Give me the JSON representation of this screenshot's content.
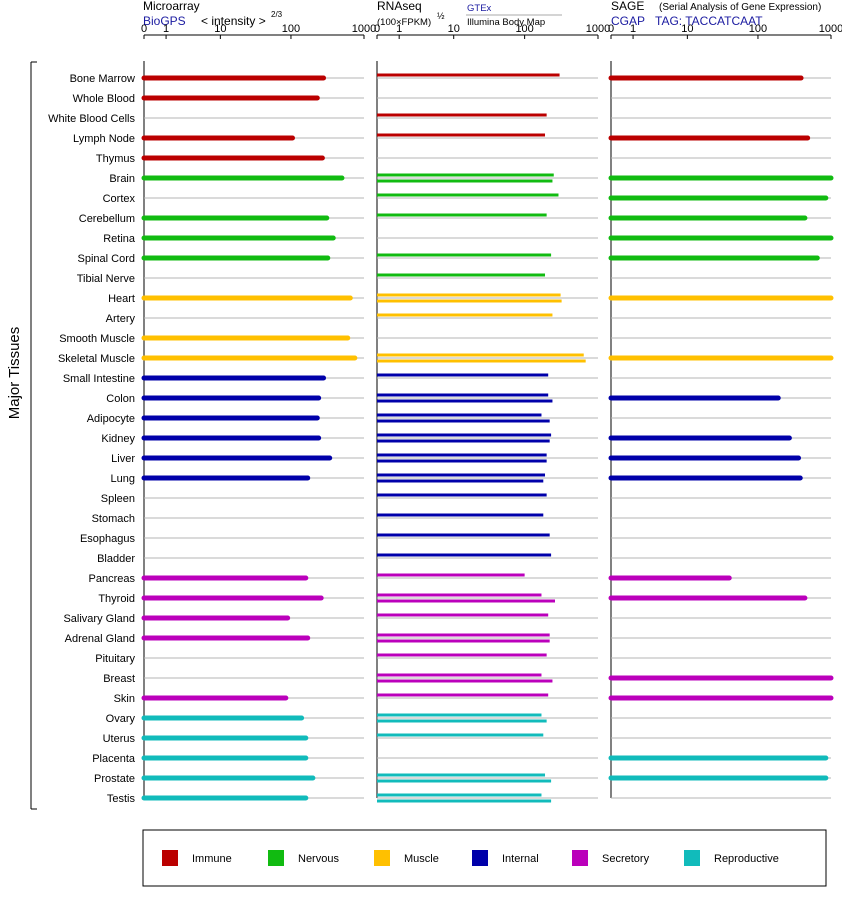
{
  "headers": {
    "microarray": {
      "title": "Microarray",
      "source": "BioGPS",
      "unit": "< intensity >",
      "unit_exp": "2/3"
    },
    "rnaseq": {
      "title": "RNAseq",
      "unit": "(100×FPKM)",
      "unit_exp": "½",
      "source1": "GTEx",
      "source2": "Illumina Body Map"
    },
    "sage": {
      "title": "SAGE",
      "subtitle": "(Serial Analysis of Gene Expression)",
      "source": "CGAP",
      "tag": "TAG: TACCATCAAT"
    }
  },
  "side_label": "Major Tissues",
  "colors": {
    "Immune": "#bb0000",
    "Nervous": "#11bb11",
    "Muscle": "#ffc000",
    "Internal": "#0000aa",
    "Secretory": "#bb00bb",
    "Reproductive": "#11bbbb"
  },
  "legend": [
    {
      "label": "Immune",
      "color": "#bb0000"
    },
    {
      "label": "Nervous",
      "color": "#11bb11"
    },
    {
      "label": "Muscle",
      "color": "#ffc000"
    },
    {
      "label": "Internal",
      "color": "#0000aa"
    },
    {
      "label": "Secretory",
      "color": "#bb00bb"
    },
    {
      "label": "Reproductive",
      "color": "#11bbbb"
    }
  ],
  "chart_data": {
    "type": "bar",
    "orientation": "horizontal",
    "scale": "log10(1+x), axis 0–1000",
    "ticks": [
      "0",
      "1",
      "10",
      "100",
      "1000"
    ],
    "tick_values": [
      0,
      1,
      10,
      100,
      1000
    ],
    "xlim": [
      0,
      1000
    ],
    "tissues": [
      {
        "name": "Bone Marrow",
        "group": "Immune",
        "microarray": 280,
        "rnaseq": [
          300
        ],
        "sage": 390
      },
      {
        "name": "Whole Blood",
        "group": "Immune",
        "microarray": 230,
        "rnaseq": [],
        "sage": null
      },
      {
        "name": "White Blood Cells",
        "group": "Immune",
        "microarray": null,
        "rnaseq": [
          200
        ],
        "sage": null
      },
      {
        "name": "Lymph Node",
        "group": "Immune",
        "microarray": 105,
        "rnaseq": [
          190
        ],
        "sage": 480
      },
      {
        "name": "Thymus",
        "group": "Immune",
        "microarray": 270,
        "rnaseq": [],
        "sage": null
      },
      {
        "name": "Brain",
        "group": "Nervous",
        "microarray": 500,
        "rnaseq": [
          250,
          240
        ],
        "sage": 1000
      },
      {
        "name": "Cortex",
        "group": "Nervous",
        "microarray": null,
        "rnaseq": [
          290
        ],
        "sage": 850
      },
      {
        "name": "Cerebellum",
        "group": "Nervous",
        "microarray": 310,
        "rnaseq": [
          200
        ],
        "sage": 440
      },
      {
        "name": "Retina",
        "group": "Nervous",
        "microarray": 380,
        "rnaseq": [],
        "sage": 1000
      },
      {
        "name": "Spinal Cord",
        "group": "Nervous",
        "microarray": 320,
        "rnaseq": [
          230
        ],
        "sage": 650
      },
      {
        "name": "Tibial Nerve",
        "group": "Nervous",
        "microarray": null,
        "rnaseq": [
          190
        ],
        "sage": null
      },
      {
        "name": "Heart",
        "group": "Muscle",
        "microarray": 650,
        "rnaseq": [
          310,
          320
        ],
        "sage": 1000
      },
      {
        "name": "Artery",
        "group": "Muscle",
        "microarray": null,
        "rnaseq": [
          240
        ],
        "sage": null
      },
      {
        "name": "Smooth Muscle",
        "group": "Muscle",
        "microarray": 600,
        "rnaseq": [],
        "sage": null
      },
      {
        "name": "Skeletal Muscle",
        "group": "Muscle",
        "microarray": 750,
        "rnaseq": [
          640,
          680
        ],
        "sage": 1000
      },
      {
        "name": "Small Intestine",
        "group": "Internal",
        "microarray": 280,
        "rnaseq": [
          210
        ],
        "sage": null
      },
      {
        "name": "Colon",
        "group": "Internal",
        "microarray": 240,
        "rnaseq": [
          210,
          240
        ],
        "sage": 190
      },
      {
        "name": "Adipocyte",
        "group": "Internal",
        "microarray": 230,
        "rnaseq": [
          170,
          220
        ],
        "sage": null
      },
      {
        "name": "Kidney",
        "group": "Internal",
        "microarray": 240,
        "rnaseq": [
          230,
          220
        ],
        "sage": 270
      },
      {
        "name": "Liver",
        "group": "Internal",
        "microarray": 340,
        "rnaseq": [
          200,
          200
        ],
        "sage": 360
      },
      {
        "name": "Lung",
        "group": "Internal",
        "microarray": 170,
        "rnaseq": [
          190,
          180
        ],
        "sage": 380
      },
      {
        "name": "Spleen",
        "group": "Internal",
        "microarray": null,
        "rnaseq": [
          200
        ],
        "sage": null
      },
      {
        "name": "Stomach",
        "group": "Internal",
        "microarray": null,
        "rnaseq": [
          180
        ],
        "sage": null
      },
      {
        "name": "Esophagus",
        "group": "Internal",
        "microarray": null,
        "rnaseq": [
          220
        ],
        "sage": null
      },
      {
        "name": "Bladder",
        "group": "Internal",
        "microarray": null,
        "rnaseq": [
          230
        ],
        "sage": null
      },
      {
        "name": "Pancreas",
        "group": "Secretory",
        "microarray": 160,
        "rnaseq": [
          100
        ],
        "sage": 40
      },
      {
        "name": "Thyroid",
        "group": "Secretory",
        "microarray": 260,
        "rnaseq": [
          170,
          260
        ],
        "sage": 440
      },
      {
        "name": "Salivary Gland",
        "group": "Secretory",
        "microarray": 90,
        "rnaseq": [
          210
        ],
        "sage": null
      },
      {
        "name": "Adrenal Gland",
        "group": "Secretory",
        "microarray": 170,
        "rnaseq": [
          220,
          220
        ],
        "sage": null
      },
      {
        "name": "Pituitary",
        "group": "Secretory",
        "microarray": null,
        "rnaseq": [
          200
        ],
        "sage": null
      },
      {
        "name": "Breast",
        "group": "Secretory",
        "microarray": null,
        "rnaseq": [
          170,
          240
        ],
        "sage": 1000
      },
      {
        "name": "Skin",
        "group": "Secretory",
        "microarray": 85,
        "rnaseq": [
          210
        ],
        "sage": 1000
      },
      {
        "name": "Ovary",
        "group": "Reproductive",
        "microarray": 140,
        "rnaseq": [
          170,
          200
        ],
        "sage": null
      },
      {
        "name": "Uterus",
        "group": "Reproductive",
        "microarray": 160,
        "rnaseq": [
          180
        ],
        "sage": null
      },
      {
        "name": "Placenta",
        "group": "Reproductive",
        "microarray": 160,
        "rnaseq": [],
        "sage": 850
      },
      {
        "name": "Prostate",
        "group": "Reproductive",
        "microarray": 200,
        "rnaseq": [
          190,
          230
        ],
        "sage": 850
      },
      {
        "name": "Testis",
        "group": "Reproductive",
        "microarray": 160,
        "rnaseq": [
          170,
          230
        ],
        "sage": null
      }
    ]
  }
}
